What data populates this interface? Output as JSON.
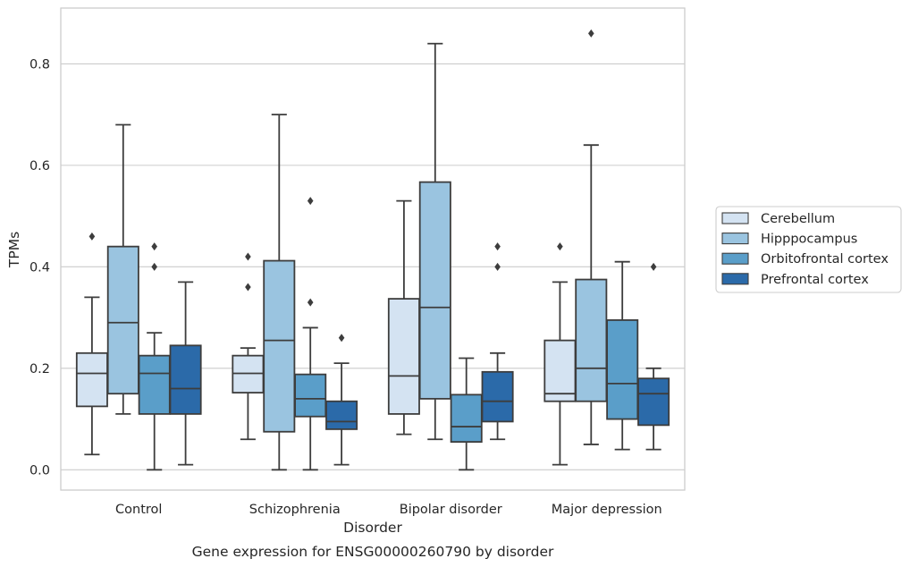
{
  "chart_data": {
    "type": "box",
    "caption": "Gene expression for ENSG00000260790 by disorder",
    "xlabel": "Disorder",
    "ylabel": "TPMs",
    "ylim": [
      -0.04,
      0.91
    ],
    "yticks": [
      0.0,
      0.2,
      0.4,
      0.6,
      0.8
    ],
    "ytick_labels": [
      "0.0",
      "0.2",
      "0.4",
      "0.6",
      "0.8"
    ],
    "grid": true,
    "legend_position": "right",
    "categories": [
      "Control",
      "Schizophrenia",
      "Bipolar disorder",
      "Major depression"
    ],
    "series": [
      {
        "name": "Cerebellum",
        "color": "#d4e3f2",
        "boxes": [
          {
            "whisker_low": 0.03,
            "q1": 0.125,
            "median": 0.19,
            "q3": 0.23,
            "whisker_high": 0.34,
            "outliers": [
              0.46
            ]
          },
          {
            "whisker_low": 0.06,
            "q1": 0.152,
            "median": 0.19,
            "q3": 0.225,
            "whisker_high": 0.24,
            "outliers": [
              0.36,
              0.42
            ]
          },
          {
            "whisker_low": 0.07,
            "q1": 0.11,
            "median": 0.185,
            "q3": 0.337,
            "whisker_high": 0.53,
            "outliers": []
          },
          {
            "whisker_low": 0.01,
            "q1": 0.135,
            "median": 0.15,
            "q3": 0.255,
            "whisker_high": 0.37,
            "outliers": [
              0.44
            ]
          }
        ]
      },
      {
        "name": "Hipppocampus",
        "color": "#9ac4e0",
        "boxes": [
          {
            "whisker_low": 0.11,
            "q1": 0.15,
            "median": 0.29,
            "q3": 0.44,
            "whisker_high": 0.68,
            "outliers": []
          },
          {
            "whisker_low": 0.0,
            "q1": 0.075,
            "median": 0.255,
            "q3": 0.412,
            "whisker_high": 0.7,
            "outliers": []
          },
          {
            "whisker_low": 0.06,
            "q1": 0.14,
            "median": 0.32,
            "q3": 0.567,
            "whisker_high": 0.84,
            "outliers": []
          },
          {
            "whisker_low": 0.05,
            "q1": 0.135,
            "median": 0.2,
            "q3": 0.375,
            "whisker_high": 0.64,
            "outliers": [
              0.86
            ]
          }
        ]
      },
      {
        "name": "Orbitofrontal cortex",
        "color": "#5a9ec9",
        "boxes": [
          {
            "whisker_low": 0.0,
            "q1": 0.11,
            "median": 0.19,
            "q3": 0.225,
            "whisker_high": 0.27,
            "outliers": [
              0.4,
              0.44
            ]
          },
          {
            "whisker_low": 0.0,
            "q1": 0.105,
            "median": 0.14,
            "q3": 0.188,
            "whisker_high": 0.28,
            "outliers": [
              0.33,
              0.53
            ]
          },
          {
            "whisker_low": 0.0,
            "q1": 0.055,
            "median": 0.085,
            "q3": 0.148,
            "whisker_high": 0.22,
            "outliers": []
          },
          {
            "whisker_low": 0.04,
            "q1": 0.1,
            "median": 0.17,
            "q3": 0.295,
            "whisker_high": 0.41,
            "outliers": []
          }
        ]
      },
      {
        "name": "Prefrontal cortex",
        "color": "#2b6aa9",
        "boxes": [
          {
            "whisker_low": 0.01,
            "q1": 0.11,
            "median": 0.16,
            "q3": 0.245,
            "whisker_high": 0.37,
            "outliers": []
          },
          {
            "whisker_low": 0.01,
            "q1": 0.08,
            "median": 0.095,
            "q3": 0.135,
            "whisker_high": 0.21,
            "outliers": [
              0.26
            ]
          },
          {
            "whisker_low": 0.06,
            "q1": 0.095,
            "median": 0.135,
            "q3": 0.193,
            "whisker_high": 0.23,
            "outliers": [
              0.4,
              0.44
            ]
          },
          {
            "whisker_low": 0.04,
            "q1": 0.088,
            "median": 0.15,
            "q3": 0.18,
            "whisker_high": 0.2,
            "outliers": [
              0.4
            ]
          }
        ]
      }
    ]
  }
}
